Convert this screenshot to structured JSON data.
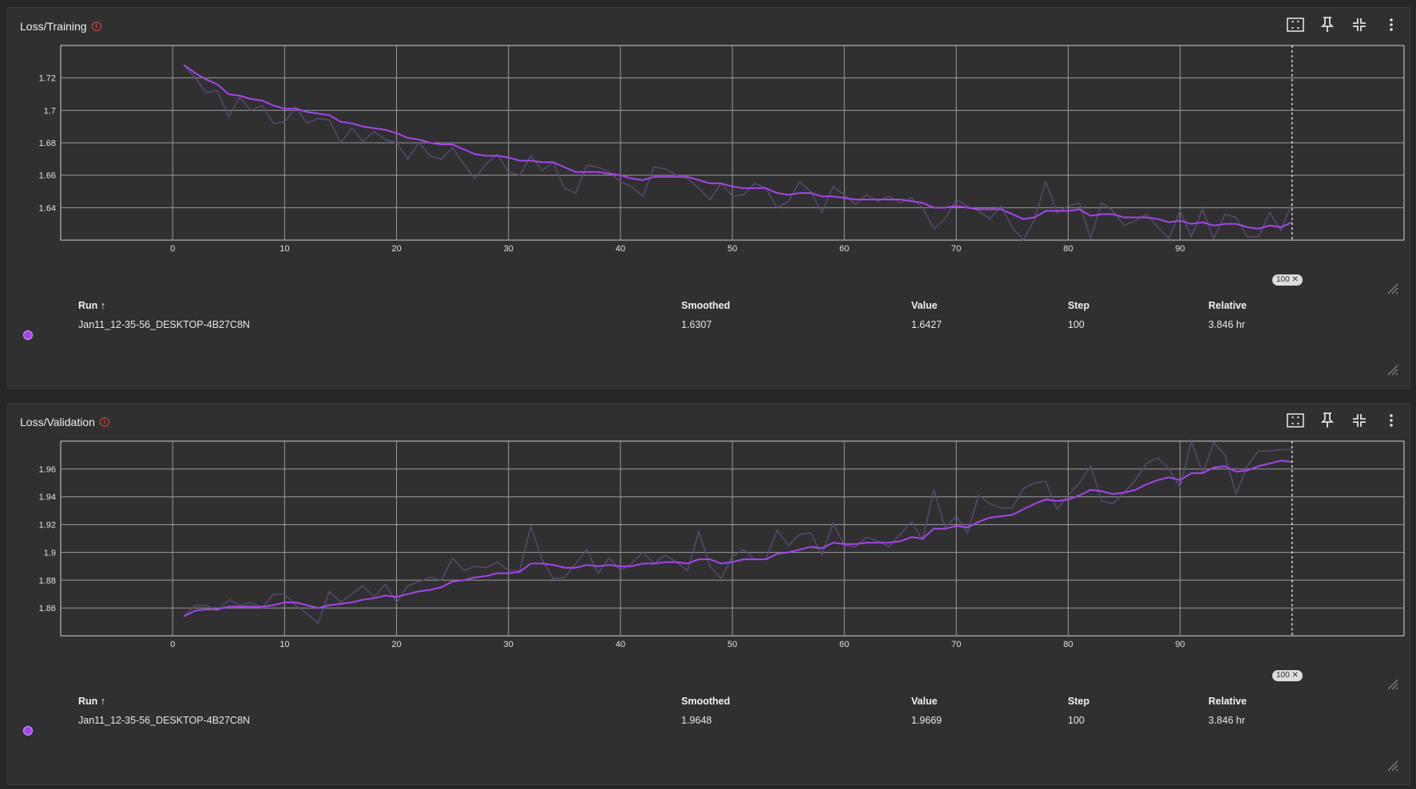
{
  "colors": {
    "run": "#a742f5",
    "raw": "#5a4b73",
    "grid": "#9a9a9a",
    "axis": "#d0d0d0"
  },
  "legend_headers": {
    "run": "Run ↑",
    "smoothed": "Smoothed",
    "value": "Value",
    "step": "Step",
    "relative": "Relative"
  },
  "panels": [
    {
      "title": "Loss/Training",
      "run_name": "Jan11_12-35-56_DESKTOP-4B27C8N",
      "smoothed": "1.6307",
      "value": "1.6427",
      "step": "100",
      "relative": "3.846 hr",
      "step_marker": "100"
    },
    {
      "title": "Loss/Validation",
      "run_name": "Jan11_12-35-56_DESKTOP-4B27C8N",
      "smoothed": "1.9648",
      "value": "1.9669",
      "step": "100",
      "relative": "3.846 hr",
      "step_marker": "100"
    }
  ],
  "chart_data": [
    {
      "type": "line",
      "title": "Loss/Training",
      "xlabel": "",
      "ylabel": "",
      "xlim": [
        -10,
        110
      ],
      "ylim": [
        1.62,
        1.74
      ],
      "x_ticks": [
        0,
        10,
        20,
        30,
        40,
        50,
        60,
        70,
        80,
        90
      ],
      "y_ticks": [
        1.64,
        1.66,
        1.68,
        1.7,
        1.72
      ],
      "y_tick_labels": [
        "1.64",
        "1.66",
        "1.68",
        "1.7",
        "1.72"
      ],
      "grid": true,
      "x": [
        1,
        2,
        3,
        4,
        5,
        6,
        7,
        8,
        9,
        10,
        11,
        12,
        13,
        14,
        15,
        16,
        17,
        18,
        19,
        20,
        21,
        22,
        23,
        24,
        25,
        26,
        27,
        28,
        29,
        30,
        31,
        32,
        33,
        34,
        35,
        36,
        37,
        38,
        39,
        40,
        41,
        42,
        43,
        44,
        45,
        46,
        47,
        48,
        49,
        50,
        51,
        52,
        53,
        54,
        55,
        56,
        57,
        58,
        59,
        60,
        61,
        62,
        63,
        64,
        65,
        66,
        67,
        68,
        69,
        70,
        71,
        72,
        73,
        74,
        75,
        76,
        77,
        78,
        79,
        80,
        81,
        82,
        83,
        84,
        85,
        86,
        87,
        88,
        89,
        90,
        91,
        92,
        93,
        94,
        95,
        96,
        97,
        98,
        99,
        100
      ],
      "series": [
        {
          "values": [
            1.728,
            1.72,
            1.711,
            1.712,
            1.696,
            1.708,
            1.7,
            1.703,
            1.692,
            1.693,
            1.702,
            1.692,
            1.695,
            1.694,
            1.68,
            1.689,
            1.681,
            1.687,
            1.682,
            1.68,
            1.67,
            1.68,
            1.672,
            1.67,
            1.677,
            1.667,
            1.658,
            1.667,
            1.673,
            1.662,
            1.66,
            1.672,
            1.663,
            1.668,
            1.652,
            1.649,
            1.666,
            1.665,
            1.662,
            1.656,
            1.653,
            1.647,
            1.665,
            1.664,
            1.66,
            1.658,
            1.652,
            1.645,
            1.655,
            1.647,
            1.648,
            1.655,
            1.652,
            1.64,
            1.644,
            1.656,
            1.65,
            1.637,
            1.653,
            1.648,
            1.642,
            1.648,
            1.644,
            1.647,
            1.643,
            1.646,
            1.64,
            1.627,
            1.633,
            1.645,
            1.641,
            1.638,
            1.633,
            1.641,
            1.628,
            1.62,
            1.633,
            1.656,
            1.637,
            1.641,
            1.643,
            1.621,
            1.643,
            1.638,
            1.629,
            1.632,
            1.636,
            1.628,
            1.621,
            1.638,
            1.622,
            1.639,
            1.621,
            1.636,
            1.634,
            1.622,
            1.622,
            1.637,
            1.626,
            1.643
          ]
        },
        {
          "name": "Smoothed",
          "values": [
            1.728,
            1.723,
            1.719,
            1.716,
            1.71,
            1.709,
            1.707,
            1.706,
            1.703,
            1.701,
            1.701,
            1.699,
            1.698,
            1.697,
            1.693,
            1.692,
            1.69,
            1.689,
            1.688,
            1.686,
            1.683,
            1.682,
            1.68,
            1.679,
            1.679,
            1.676,
            1.673,
            1.672,
            1.672,
            1.671,
            1.669,
            1.669,
            1.668,
            1.668,
            1.665,
            1.662,
            1.662,
            1.662,
            1.661,
            1.66,
            1.658,
            1.657,
            1.659,
            1.659,
            1.659,
            1.659,
            1.657,
            1.655,
            1.655,
            1.653,
            1.652,
            1.652,
            1.652,
            1.649,
            1.648,
            1.649,
            1.649,
            1.647,
            1.647,
            1.646,
            1.645,
            1.645,
            1.645,
            1.645,
            1.645,
            1.644,
            1.643,
            1.64,
            1.64,
            1.641,
            1.64,
            1.639,
            1.639,
            1.639,
            1.636,
            1.633,
            1.634,
            1.638,
            1.638,
            1.638,
            1.639,
            1.635,
            1.636,
            1.636,
            1.634,
            1.634,
            1.634,
            1.633,
            1.631,
            1.632,
            1.63,
            1.631,
            1.629,
            1.63,
            1.63,
            1.628,
            1.627,
            1.629,
            1.628,
            1.631
          ]
        }
      ],
      "step_marker_x": 100
    },
    {
      "type": "line",
      "title": "Loss/Validation",
      "xlabel": "",
      "ylabel": "",
      "xlim": [
        -10,
        110
      ],
      "ylim": [
        1.84,
        1.98
      ],
      "x_ticks": [
        0,
        10,
        20,
        30,
        40,
        50,
        60,
        70,
        80,
        90
      ],
      "y_ticks": [
        1.86,
        1.88,
        1.9,
        1.92,
        1.94,
        1.96
      ],
      "y_tick_labels": [
        "1.86",
        "1.88",
        "1.9",
        "1.92",
        "1.94",
        "1.96"
      ],
      "grid": true,
      "x": [
        1,
        2,
        3,
        4,
        5,
        6,
        7,
        8,
        9,
        10,
        11,
        12,
        13,
        14,
        15,
        16,
        17,
        18,
        19,
        20,
        21,
        22,
        23,
        24,
        25,
        26,
        27,
        28,
        29,
        30,
        31,
        32,
        33,
        34,
        35,
        36,
        37,
        38,
        39,
        40,
        41,
        42,
        43,
        44,
        45,
        46,
        47,
        48,
        49,
        50,
        51,
        52,
        53,
        54,
        55,
        56,
        57,
        58,
        59,
        60,
        61,
        62,
        63,
        64,
        65,
        66,
        67,
        68,
        69,
        70,
        71,
        72,
        73,
        74,
        75,
        76,
        77,
        78,
        79,
        80,
        81,
        82,
        83,
        84,
        85,
        86,
        87,
        88,
        89,
        90,
        91,
        92,
        93,
        94,
        95,
        96,
        97,
        98,
        99,
        100
      ],
      "series": [
        {
          "values": [
            1.854,
            1.862,
            1.862,
            1.858,
            1.866,
            1.862,
            1.864,
            1.86,
            1.87,
            1.87,
            1.862,
            1.856,
            1.849,
            1.872,
            1.864,
            1.87,
            1.876,
            1.868,
            1.877,
            1.864,
            1.876,
            1.879,
            1.882,
            1.88,
            1.896,
            1.887,
            1.89,
            1.889,
            1.893,
            1.887,
            1.887,
            1.919,
            1.895,
            1.881,
            1.882,
            1.892,
            1.902,
            1.885,
            1.896,
            1.887,
            1.892,
            1.9,
            1.892,
            1.898,
            1.893,
            1.887,
            1.915,
            1.89,
            1.881,
            1.897,
            1.902,
            1.895,
            1.895,
            1.916,
            1.905,
            1.913,
            1.914,
            1.898,
            1.921,
            1.905,
            1.904,
            1.911,
            1.908,
            1.904,
            1.913,
            1.922,
            1.909,
            1.945,
            1.918,
            1.926,
            1.914,
            1.941,
            1.935,
            1.932,
            1.932,
            1.946,
            1.95,
            1.951,
            1.931,
            1.941,
            1.95,
            1.962,
            1.937,
            1.935,
            1.943,
            1.952,
            1.964,
            1.968,
            1.96,
            1.947,
            1.98,
            1.957,
            1.979,
            1.97,
            1.942,
            1.962,
            1.973,
            1.973,
            1.974,
            1.974
          ]
        },
        {
          "name": "Smoothed",
          "values": [
            1.854,
            1.858,
            1.859,
            1.859,
            1.861,
            1.861,
            1.861,
            1.861,
            1.862,
            1.864,
            1.864,
            1.862,
            1.86,
            1.862,
            1.863,
            1.864,
            1.866,
            1.867,
            1.869,
            1.868,
            1.87,
            1.872,
            1.873,
            1.875,
            1.879,
            1.88,
            1.882,
            1.883,
            1.885,
            1.885,
            1.886,
            1.892,
            1.892,
            1.891,
            1.889,
            1.889,
            1.891,
            1.89,
            1.891,
            1.89,
            1.89,
            1.892,
            1.892,
            1.893,
            1.893,
            1.892,
            1.895,
            1.895,
            1.892,
            1.893,
            1.895,
            1.895,
            1.895,
            1.899,
            1.9,
            1.902,
            1.904,
            1.903,
            1.907,
            1.906,
            1.906,
            1.907,
            1.907,
            1.907,
            1.908,
            1.911,
            1.91,
            1.917,
            1.917,
            1.919,
            1.918,
            1.922,
            1.925,
            1.926,
            1.927,
            1.931,
            1.935,
            1.938,
            1.937,
            1.938,
            1.941,
            1.945,
            1.944,
            1.942,
            1.943,
            1.945,
            1.949,
            1.952,
            1.954,
            1.952,
            1.957,
            1.957,
            1.961,
            1.962,
            1.958,
            1.959,
            1.962,
            1.964,
            1.966,
            1.965
          ]
        }
      ],
      "step_marker_x": 100
    }
  ]
}
